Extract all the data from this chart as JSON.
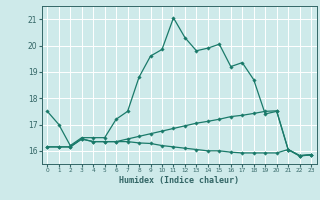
{
  "xlabel": "Humidex (Indice chaleur)",
  "background_color": "#ceeaea",
  "grid_color": "#ffffff",
  "line_color": "#1a7a6a",
  "xlim": [
    -0.5,
    23.5
  ],
  "ylim": [
    15.5,
    21.5
  ],
  "yticks": [
    16,
    17,
    18,
    19,
    20,
    21
  ],
  "xticks": [
    0,
    1,
    2,
    3,
    4,
    5,
    6,
    7,
    8,
    9,
    10,
    11,
    12,
    13,
    14,
    15,
    16,
    17,
    18,
    19,
    20,
    21,
    22,
    23
  ],
  "series1_x": [
    0,
    1,
    2,
    3,
    4,
    5,
    6,
    7,
    8,
    9,
    10,
    11,
    12,
    13,
    14,
    15,
    16,
    17,
    18,
    19,
    20,
    21,
    22,
    23
  ],
  "series1_y": [
    17.5,
    17.0,
    16.2,
    16.5,
    16.5,
    16.5,
    17.2,
    17.5,
    18.8,
    19.6,
    19.85,
    21.05,
    20.3,
    19.8,
    19.9,
    20.05,
    19.2,
    19.35,
    18.7,
    17.4,
    17.5,
    16.05,
    15.8,
    15.85
  ],
  "series2_x": [
    0,
    1,
    2,
    3,
    4,
    5,
    6,
    7,
    8,
    9,
    10,
    11,
    12,
    13,
    14,
    15,
    16,
    17,
    18,
    19,
    20,
    21,
    22,
    23
  ],
  "series2_y": [
    16.15,
    16.15,
    16.15,
    16.45,
    16.35,
    16.35,
    16.35,
    16.45,
    16.55,
    16.65,
    16.75,
    16.85,
    16.95,
    17.05,
    17.12,
    17.2,
    17.3,
    17.35,
    17.42,
    17.5,
    17.52,
    16.05,
    15.82,
    15.85
  ],
  "series3_x": [
    0,
    1,
    2,
    3,
    4,
    5,
    6,
    7,
    8,
    9,
    10,
    11,
    12,
    13,
    14,
    15,
    16,
    17,
    18,
    19,
    20,
    21,
    22,
    23
  ],
  "series3_y": [
    16.15,
    16.15,
    16.15,
    16.45,
    16.35,
    16.35,
    16.35,
    16.35,
    16.3,
    16.28,
    16.2,
    16.15,
    16.1,
    16.05,
    16.0,
    16.0,
    15.95,
    15.92,
    15.92,
    15.92,
    15.92,
    16.05,
    15.82,
    15.85
  ]
}
